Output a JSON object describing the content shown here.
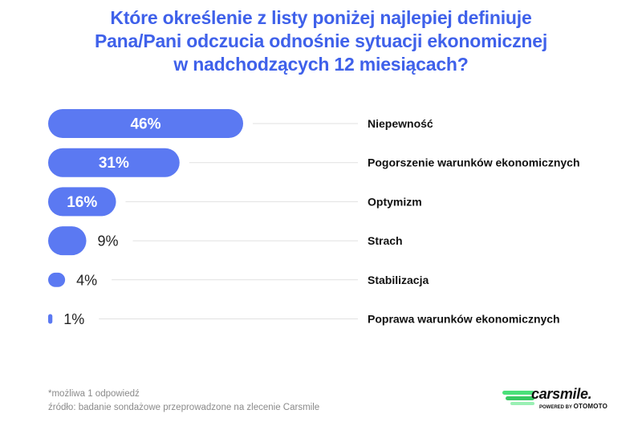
{
  "title_lines": [
    "Które określenie z listy poniżej najlepiej definiuje",
    "Pana/Pani odczucia odnośnie sytuacji ekonomicznej",
    "w nadchodzących 12 miesiącach?"
  ],
  "chart_data": {
    "type": "bar",
    "orientation": "horizontal",
    "categories": [
      "Niepewność",
      "Pogorszenie warunków ekonomicznych",
      "Optymizm",
      "Strach",
      "Stabilizacja",
      "Poprawa warunków ekonomicznych"
    ],
    "values": [
      46,
      31,
      16,
      9,
      4,
      1
    ],
    "value_labels": [
      "46%",
      "31%",
      "16%",
      "9%",
      "4%",
      "1%"
    ],
    "unit": "%",
    "xlim": [
      0,
      46
    ],
    "grid": false,
    "legend": "none"
  },
  "colors": {
    "title": "#3f61ea",
    "bar": "#5b79f2",
    "bar_label_inside": "#ffffff",
    "bar_label_outside": "#222222",
    "category_label": "#111111",
    "leader_line": "#e1e1e1",
    "footnote": "#8a8a8a"
  },
  "footnote": {
    "line1": "*możliwa 1 odpowiedź",
    "line2": "źródło: badanie sondażowe przeprowadzone na zlecenie Carsmile"
  },
  "logo": {
    "wordmark": "carsmile.",
    "powered_prefix": "POWERED BY",
    "powered_brand": "OTOMOTO"
  }
}
